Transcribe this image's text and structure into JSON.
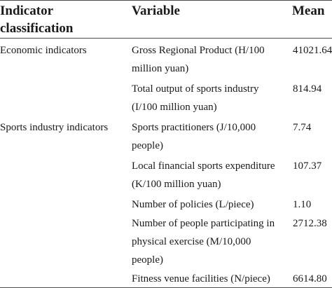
{
  "table": {
    "headers": {
      "indicator_line1": "Indicator",
      "indicator_line2": "classification",
      "variable": "Variable",
      "mean": "Mean"
    },
    "rows": [
      {
        "indicator": "Economic indicators",
        "variable_lines": [
          "Gross Regional Product (H/100",
          "million yuan)"
        ],
        "mean": "41021.64"
      },
      {
        "indicator": "",
        "variable_lines": [
          "Total output of sports industry",
          "(I/100 million yuan)"
        ],
        "mean": "814.94"
      },
      {
        "indicator": "Sports industry indicators",
        "variable_lines": [
          "Sports practitioners (J/10,000",
          "people)"
        ],
        "mean": "7.74"
      },
      {
        "indicator": "",
        "variable_lines": [
          "Local financial sports expenditure",
          "(K/100 million yuan)"
        ],
        "mean": "107.37"
      },
      {
        "indicator": "",
        "variable_lines": [
          "Number of policies (L/piece)"
        ],
        "mean": "1.10"
      },
      {
        "indicator": "",
        "variable_lines": [
          "Number of people participating in",
          "physical exercise (M/10,000",
          "people)"
        ],
        "mean": "2712.38"
      },
      {
        "indicator": "",
        "variable_lines": [
          "Fitness venue facilities (N/piece)"
        ],
        "mean": "6614.80"
      }
    ]
  }
}
